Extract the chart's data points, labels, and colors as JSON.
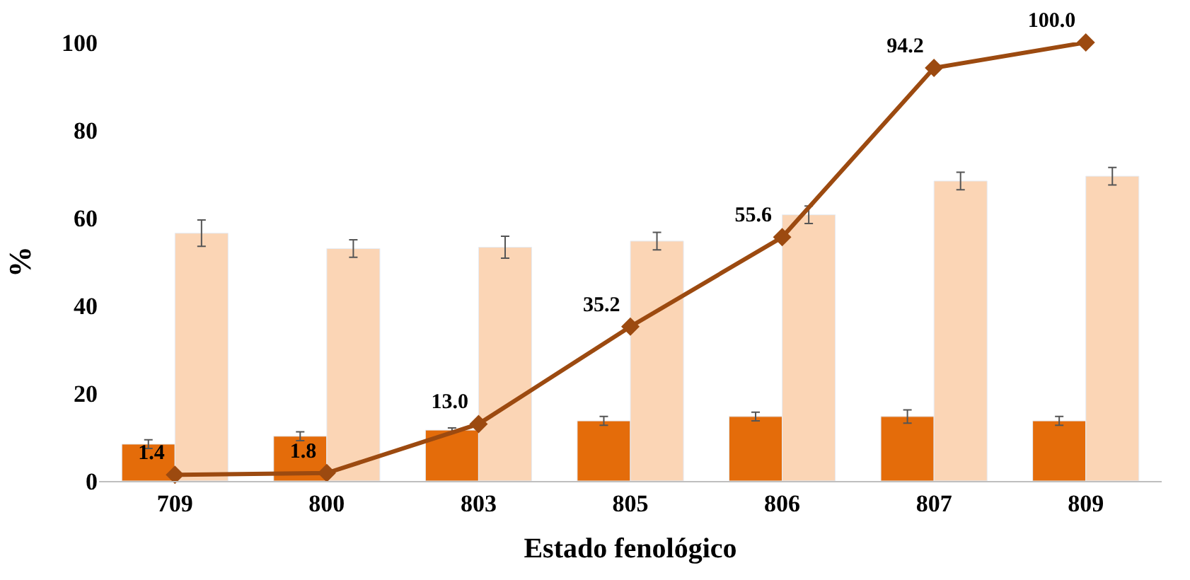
{
  "chart_data": {
    "type": "bar",
    "xlabel": "Estado fenológico",
    "ylabel": "%",
    "categories": [
      "709",
      "800",
      "803",
      "805",
      "806",
      "807",
      "809"
    ],
    "ylim": [
      0,
      100
    ],
    "yticks": [
      0,
      20,
      40,
      60,
      80,
      100
    ],
    "series": [
      {
        "color": "#e46c0a",
        "values": [
          8.4,
          10.2,
          11.6,
          13.7,
          14.7,
          14.7,
          13.7
        ],
        "errors": [
          1,
          1,
          0.5,
          1,
          1,
          1.5,
          1
        ]
      },
      {
        "color": "#fbd5b5",
        "values": [
          56.5,
          53,
          53.3,
          54.7,
          60.7,
          68.4,
          69.5
        ],
        "errors": [
          3,
          2,
          2.5,
          2,
          2,
          2,
          2
        ]
      },
      {
        "type": "line",
        "color": "#9c4a10",
        "marker": "diamond",
        "values": [
          1.4,
          1.8,
          13.0,
          35.2,
          55.6,
          94.2,
          100.0
        ],
        "value_labels": [
          "1.4",
          "1.8",
          "13.0",
          "35.2",
          "55.6",
          "94.2",
          "100.0"
        ]
      }
    ]
  }
}
